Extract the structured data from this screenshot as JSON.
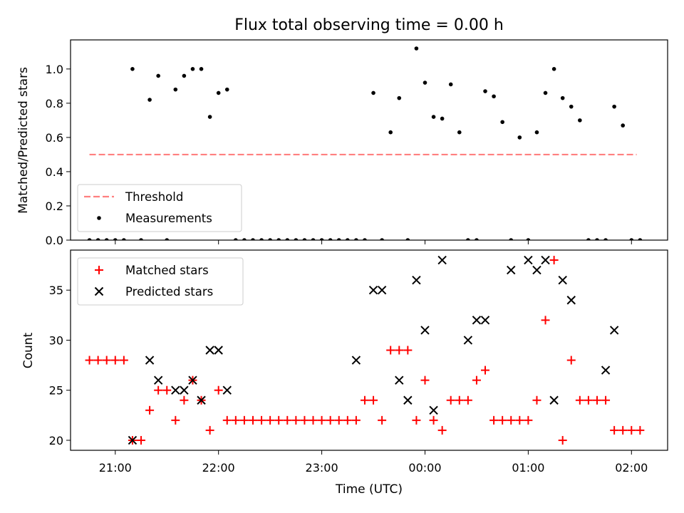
{
  "chart_data": [
    {
      "type": "scatter",
      "title": "Flux total observing time = 0.00 h",
      "xlabel": "",
      "ylabel": "Matched/Predicted stars",
      "xlim": [
        "20:34",
        "02:21"
      ],
      "ylim": [
        0,
        1.17
      ],
      "yticks": [
        0.0,
        0.2,
        0.4,
        0.6,
        0.8,
        1.0
      ],
      "ytick_labels": [
        "0.0",
        "0.2",
        "0.4",
        "0.6",
        "0.8",
        "1.0"
      ],
      "xticks": [
        "21:00",
        "22:00",
        "23:00",
        "00:00",
        "01:00",
        "02:00"
      ],
      "legend_position": "lower-left",
      "grid": false,
      "series": [
        {
          "name": "Threshold",
          "kind": "dashed-line",
          "color": "#ff7f7f",
          "x": [
            "20:45",
            "02:03"
          ],
          "y": [
            0.5,
            0.5
          ]
        },
        {
          "name": "Measurements",
          "kind": "dots",
          "color": "#000000",
          "x": [
            "20:45",
            "20:50",
            "20:55",
            "21:00",
            "21:05",
            "21:10",
            "21:15",
            "21:20",
            "21:25",
            "21:30",
            "21:35",
            "21:40",
            "21:45",
            "21:50",
            "21:55",
            "22:00",
            "22:05",
            "22:10",
            "22:15",
            "22:20",
            "22:25",
            "22:30",
            "22:35",
            "22:40",
            "22:45",
            "22:50",
            "22:55",
            "23:00",
            "23:05",
            "23:10",
            "23:15",
            "23:20",
            "23:25",
            "23:30",
            "23:35",
            "23:40",
            "23:45",
            "23:50",
            "23:55",
            "00:00",
            "00:05",
            "00:10",
            "00:15",
            "00:20",
            "00:25",
            "00:30",
            "00:35",
            "00:40",
            "00:45",
            "00:50",
            "00:55",
            "01:00",
            "01:05",
            "01:10",
            "01:15",
            "01:20",
            "01:25",
            "01:30",
            "01:35",
            "01:40",
            "01:45",
            "01:50",
            "01:55",
            "02:00",
            "02:05"
          ],
          "y": [
            0,
            0,
            0,
            0,
            0,
            1.0,
            0,
            0.82,
            0.96,
            0,
            0.88,
            0.96,
            1.0,
            1.0,
            0.72,
            0.86,
            0.88,
            0,
            0,
            0,
            0,
            0,
            0,
            0,
            0,
            0,
            0,
            0,
            0,
            0,
            0,
            0,
            0,
            0.86,
            0,
            0.63,
            0.83,
            0,
            1.12,
            0.92,
            0.72,
            0.71,
            0.91,
            0.63,
            0,
            0,
            0.87,
            0.84,
            0.69,
            0,
            0.6,
            0,
            0.63,
            0.86,
            1.0,
            0.83,
            0.78,
            0.7,
            0,
            0,
            0,
            0.78,
            0.67,
            0,
            0
          ]
        }
      ]
    },
    {
      "type": "scatter",
      "title": "",
      "xlabel": "Time (UTC)",
      "ylabel": "Count",
      "xlim": [
        "20:34",
        "02:21"
      ],
      "ylim": [
        19,
        39
      ],
      "yticks": [
        20,
        25,
        30,
        35
      ],
      "ytick_labels": [
        "20",
        "25",
        "30",
        "35"
      ],
      "xticks": [
        "21:00",
        "22:00",
        "23:00",
        "00:00",
        "01:00",
        "02:00"
      ],
      "xtick_labels": [
        "21:00",
        "22:00",
        "23:00",
        "00:00",
        "01:00",
        "02:00"
      ],
      "legend_position": "upper-left",
      "grid": false,
      "series": [
        {
          "name": "Matched stars",
          "marker": "plus",
          "color": "#ff0000",
          "x": [
            "20:45",
            "20:50",
            "20:55",
            "21:00",
            "21:05",
            "21:10",
            "21:15",
            "21:20",
            "21:25",
            "21:30",
            "21:35",
            "21:40",
            "21:45",
            "21:50",
            "21:55",
            "22:00",
            "22:05",
            "22:10",
            "22:15",
            "22:20",
            "22:25",
            "22:30",
            "22:35",
            "22:40",
            "22:45",
            "22:50",
            "22:55",
            "23:00",
            "23:05",
            "23:10",
            "23:15",
            "23:20",
            "23:25",
            "23:30",
            "23:35",
            "23:40",
            "23:45",
            "23:50",
            "23:55",
            "00:00",
            "00:05",
            "00:10",
            "00:15",
            "00:20",
            "00:25",
            "00:30",
            "00:35",
            "00:40",
            "00:45",
            "00:50",
            "00:55",
            "01:00",
            "01:05",
            "01:10",
            "01:15",
            "01:20",
            "01:25",
            "01:30",
            "01:35",
            "01:40",
            "01:45",
            "01:50",
            "01:55",
            "02:00",
            "02:05"
          ],
          "y": [
            28,
            28,
            28,
            28,
            28,
            20,
            20,
            23,
            25,
            25,
            22,
            24,
            26,
            24,
            21,
            25,
            22,
            22,
            22,
            22,
            22,
            22,
            22,
            22,
            22,
            22,
            22,
            22,
            22,
            22,
            22,
            22,
            24,
            24,
            22,
            29,
            29,
            29,
            22,
            26,
            22,
            21,
            24,
            24,
            24,
            26,
            27,
            22,
            22,
            22,
            22,
            22,
            24,
            32,
            38,
            20,
            28,
            24,
            24,
            24,
            24,
            21,
            21,
            21,
            21
          ]
        },
        {
          "name": "Predicted stars",
          "marker": "x",
          "color": "#000000",
          "x": [
            "21:10",
            "21:20",
            "21:25",
            "21:35",
            "21:40",
            "21:45",
            "21:50",
            "21:55",
            "22:00",
            "22:05",
            "23:20",
            "23:30",
            "23:35",
            "23:45",
            "23:50",
            "23:55",
            "00:00",
            "00:05",
            "00:10",
            "00:25",
            "00:30",
            "00:35",
            "00:50",
            "01:00",
            "01:05",
            "01:10",
            "01:15",
            "01:20",
            "01:25",
            "01:45",
            "01:50"
          ],
          "y": [
            20,
            28,
            26,
            25,
            25,
            26,
            24,
            29,
            29,
            25,
            28,
            35,
            35,
            26,
            24,
            36,
            31,
            23,
            38,
            30,
            32,
            32,
            37,
            38,
            37,
            38,
            24,
            36,
            34,
            27,
            31
          ]
        }
      ]
    }
  ]
}
